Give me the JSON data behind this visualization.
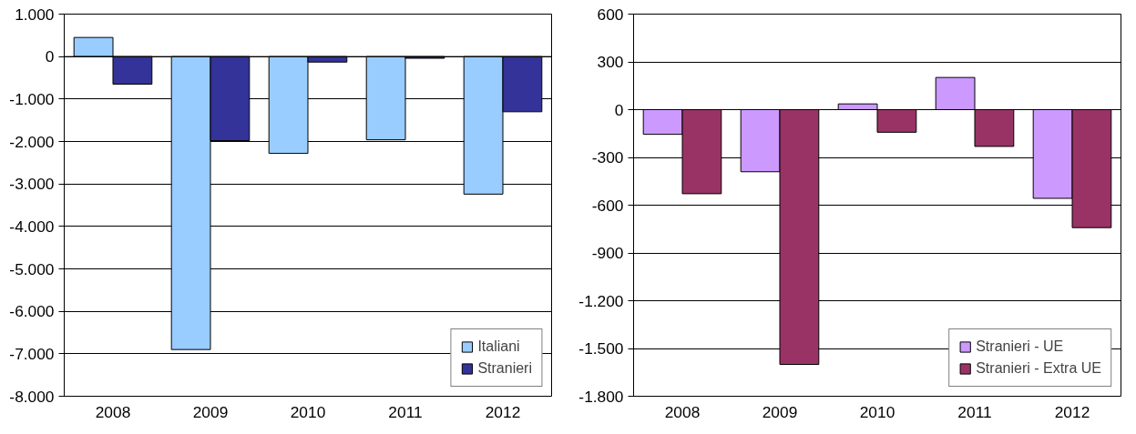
{
  "chart_data": [
    {
      "type": "bar",
      "categories": [
        "2008",
        "2009",
        "2010",
        "2011",
        "2012"
      ],
      "series": [
        {
          "name": "Italiani",
          "color": "#99ccff",
          "values": [
            450,
            -6900,
            -2280,
            -1960,
            -3240
          ]
        },
        {
          "name": "Stranieri",
          "color": "#333399",
          "values": [
            -650,
            -1980,
            -130,
            -40,
            -1300
          ]
        }
      ],
      "ylim": [
        -8000,
        1000
      ],
      "yticks": [
        {
          "value": 1000,
          "label": "1.000"
        },
        0,
        {
          "value": -1000,
          "label": "-1.000"
        },
        {
          "value": -2000,
          "label": "-2.000"
        },
        {
          "value": -3000,
          "label": "-3.000"
        },
        {
          "value": -4000,
          "label": "-4.000"
        },
        {
          "value": -5000,
          "label": "-5.000"
        },
        {
          "value": -6000,
          "label": "-6.000"
        },
        {
          "value": -7000,
          "label": "-7.000"
        },
        {
          "value": -8000,
          "label": "-8.000"
        }
      ],
      "grid": "y",
      "legend": "bottom right"
    },
    {
      "type": "bar",
      "categories": [
        "2008",
        "2009",
        "2010",
        "2011",
        "2012"
      ],
      "series": [
        {
          "name": "Stranieri - UE",
          "color": "#cc99ff",
          "values": [
            -155,
            -390,
            36,
            202,
            -557
          ]
        },
        {
          "name": "Stranieri - Extra UE",
          "color": "#993366",
          "values": [
            -528,
            -1600,
            -142,
            -231,
            -741
          ]
        }
      ],
      "ylim": [
        -1800,
        600
      ],
      "yticks": [
        600,
        300,
        0,
        -300,
        -600,
        -900,
        {
          "value": -1200,
          "label": "-1.200"
        },
        {
          "value": -1500,
          "label": "-1.500"
        },
        {
          "value": -1800,
          "label": "-1.800"
        }
      ],
      "grid": "y",
      "legend": "bottom right"
    }
  ]
}
